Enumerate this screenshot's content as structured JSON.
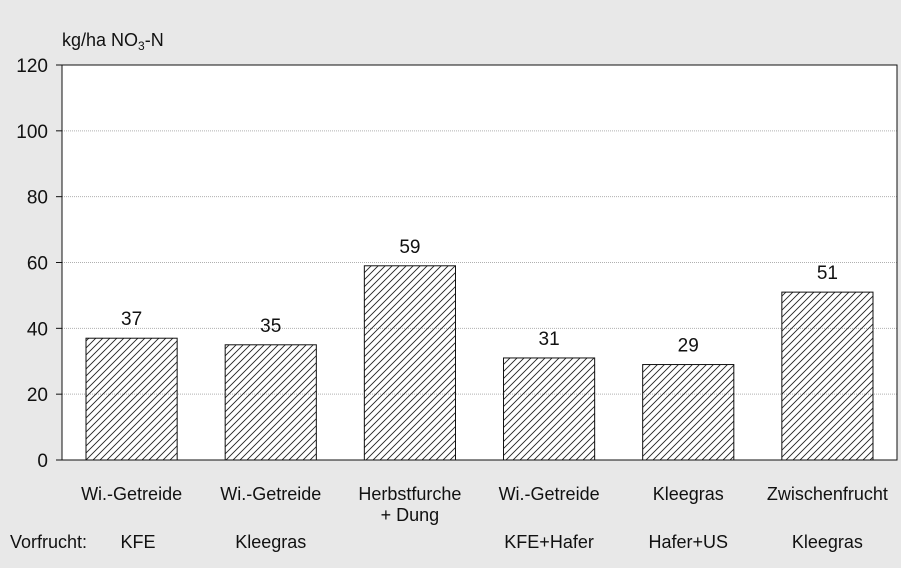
{
  "chart_data": {
    "type": "bar",
    "ylabel": "kg/ha NO",
    "ylabel_sub": "3",
    "ylabel_suffix": "-N",
    "ylim": [
      0,
      120
    ],
    "yticks": [
      0,
      20,
      40,
      60,
      80,
      100,
      120
    ],
    "grid": true,
    "categories": [
      [
        "Wi.-Getreide"
      ],
      [
        "Wi.-Getreide"
      ],
      [
        "Herbstfurche",
        "+ Dung"
      ],
      [
        "Wi.-Getreide"
      ],
      [
        "Kleegras"
      ],
      [
        "Zwischenfrucht"
      ]
    ],
    "vorfrucht_label": "Vorfrucht:",
    "vorfrucht": [
      "KFE",
      "Kleegras",
      "",
      "KFE+Hafer",
      "Hafer+US",
      "Kleegras"
    ],
    "values": [
      37,
      35,
      59,
      31,
      29,
      51
    ],
    "data_labels": [
      "37",
      "35",
      "59",
      "31",
      "29",
      "51"
    ],
    "colors": {
      "background": "#e8e8e8",
      "plot_area": "#ffffff",
      "bar_fill": "#ffffff",
      "hatch": "#222222",
      "grid": "#b0b0b0",
      "axis": "#111111"
    }
  }
}
